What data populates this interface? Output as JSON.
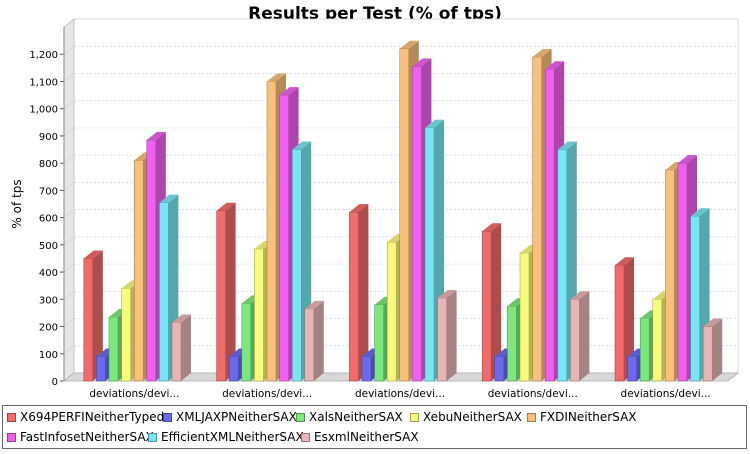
{
  "chart_data": {
    "type": "bar",
    "title": "Results per Test (% of tps)",
    "ylabel": "% of tps",
    "xlabel": "",
    "ylim": [
      0,
      1300
    ],
    "yticks": [
      0,
      100,
      200,
      300,
      400,
      500,
      600,
      700,
      800,
      900,
      1000,
      1100,
      1200
    ],
    "ytick_labels": [
      "0",
      "100",
      "200",
      "300",
      "400",
      "500",
      "600",
      "700",
      "800",
      "900",
      "1,000",
      "1,100",
      "1,200"
    ],
    "categories": [
      "deviations/devi...",
      "deviations/devi...",
      "deviations/devi...",
      "deviations/devi...",
      "deviations/devi..."
    ],
    "grid": true,
    "legend_position": "bottom",
    "series": [
      {
        "name": "X694PERFINeitherTyped",
        "color": "#f26b6b",
        "values": [
          450,
          625,
          620,
          550,
          425
        ]
      },
      {
        "name": "XMLJAXPNeitherSAX",
        "color": "#6a6af0",
        "values": [
          90,
          90,
          90,
          90,
          90
        ]
      },
      {
        "name": "XalsNeitherSAX",
        "color": "#7be87b",
        "values": [
          235,
          285,
          280,
          275,
          230
        ]
      },
      {
        "name": "XebuNeitherSAX",
        "color": "#fafa7a",
        "values": [
          340,
          485,
          510,
          470,
          300
        ]
      },
      {
        "name": "FXDINeitherSAX",
        "color": "#f8c07a",
        "values": [
          810,
          1100,
          1220,
          1190,
          775
        ]
      },
      {
        "name": "FastInfosetNeitherSAX",
        "color": "#f060f0",
        "values": [
          885,
          1050,
          1155,
          1145,
          800
        ]
      },
      {
        "name": "EfficientXMLNeitherSAX",
        "color": "#78e6f2",
        "values": [
          655,
          850,
          930,
          850,
          605
        ]
      },
      {
        "name": "EsxmlNeitherSAX",
        "color": "#e8b4b4",
        "values": [
          215,
          265,
          305,
          300,
          200
        ]
      }
    ]
  }
}
